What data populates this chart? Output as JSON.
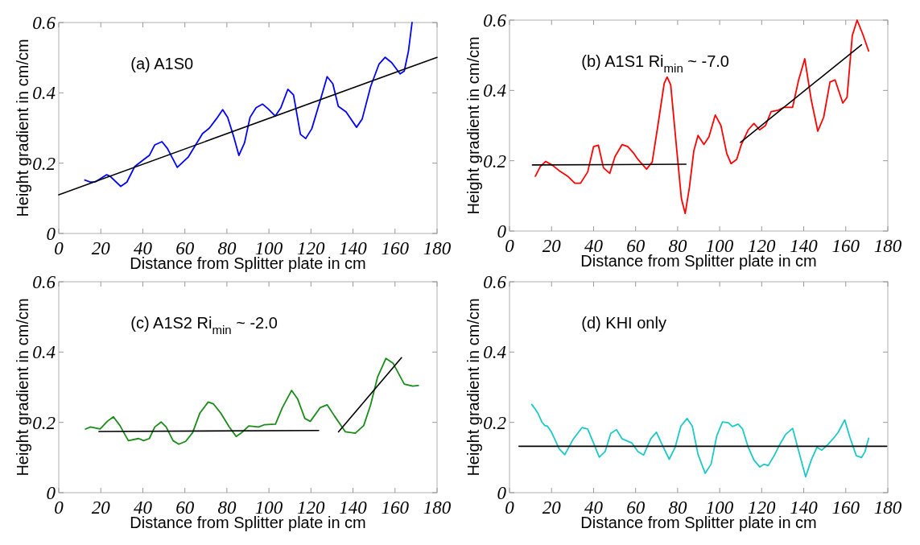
{
  "chart_data": [
    {
      "type": "line",
      "title": "(a) A1S0",
      "xlabel": "Distance from Splitter plate in cm",
      "ylabel": "Height gradient in cm/cm",
      "xlim": [
        0,
        180
      ],
      "ylim": [
        0,
        0.6
      ],
      "xticks": [
        0,
        20,
        40,
        60,
        80,
        100,
        120,
        140,
        160,
        180
      ],
      "yticks": [
        0,
        0.2,
        0.4,
        0.6
      ],
      "series": [
        {
          "color": "#0000ff",
          "x": [
            12.4,
            15.1,
            17.5,
            22.8,
            24.4,
            29.5,
            32.4,
            36.1,
            40.4,
            43.1,
            45.7,
            49.1,
            51.7,
            56.4,
            61.7,
            68.4,
            71.7,
            75,
            78,
            80.4,
            83.3,
            85.7,
            88.4,
            91,
            93.9,
            97,
            99.7,
            103,
            105.7,
            109,
            111.7,
            115,
            117.5,
            120.4,
            124.4,
            127.7,
            130.4,
            133,
            136.7,
            141.7,
            144.4,
            148.4,
            152.4,
            155.3,
            158.4,
            162.4,
            164.4,
            166.4,
            168.1
          ],
          "values": [
            0.152,
            0.146,
            0.147,
            0.167,
            0.163,
            0.134,
            0.146,
            0.19,
            0.21,
            0.222,
            0.252,
            0.261,
            0.242,
            0.188,
            0.218,
            0.284,
            0.3,
            0.326,
            0.352,
            0.33,
            0.274,
            0.222,
            0.258,
            0.33,
            0.358,
            0.368,
            0.354,
            0.334,
            0.358,
            0.41,
            0.394,
            0.282,
            0.27,
            0.298,
            0.378,
            0.446,
            0.426,
            0.362,
            0.346,
            0.302,
            0.326,
            0.418,
            0.482,
            0.501,
            0.486,
            0.454,
            0.462,
            0.519,
            0.6
          ]
        },
        {
          "type": "line",
          "color": "#000000",
          "x": [
            0,
            180
          ],
          "values": [
            0.11,
            0.501
          ]
        }
      ]
    },
    {
      "type": "line",
      "title": "(b) A1S1 Ri$_{min}$ ~ -7.0",
      "xlabel": "Distance from Splitter plate in cm",
      "ylabel": "Height gradient in cm/cm",
      "xlim": [
        0,
        180
      ],
      "ylim": [
        0,
        0.6
      ],
      "xticks": [
        0,
        20,
        40,
        60,
        80,
        100,
        120,
        140,
        160,
        180
      ],
      "yticks": [
        0,
        0.2,
        0.4,
        0.6
      ],
      "series": [
        {
          "color": "#ff0000",
          "x": [
            12.3,
            14.7,
            17.2,
            20.2,
            23.6,
            27.7,
            31.1,
            33.8,
            37.2,
            40,
            42.3,
            44.7,
            47.7,
            50.2,
            53.6,
            56.3,
            59,
            61.1,
            65.2,
            67.9,
            70.6,
            73.6,
            75,
            76.7,
            79.5,
            81.8,
            83.6,
            85.6,
            87.7,
            89.7,
            92.5,
            94.9,
            97.9,
            100.6,
            103.4,
            105.4,
            108.1,
            110.2,
            113.6,
            116.3,
            119,
            121.8,
            124.5,
            127.9,
            130.6,
            134.7,
            137.5,
            140.5,
            143.6,
            146.7,
            149.5,
            152.5,
            154.9,
            158.6,
            160.6,
            163.1,
            165.4,
            168.1,
            170.9
          ],
          "values": [
            0.156,
            0.184,
            0.198,
            0.188,
            0.172,
            0.156,
            0.136,
            0.136,
            0.168,
            0.24,
            0.244,
            0.18,
            0.164,
            0.212,
            0.246,
            0.24,
            0.222,
            0.204,
            0.176,
            0.196,
            0.3,
            0.42,
            0.438,
            0.416,
            0.236,
            0.092,
            0.05,
            0.124,
            0.228,
            0.272,
            0.246,
            0.268,
            0.33,
            0.3,
            0.22,
            0.192,
            0.204,
            0.244,
            0.288,
            0.306,
            0.288,
            0.3,
            0.34,
            0.344,
            0.352,
            0.352,
            0.428,
            0.49,
            0.372,
            0.284,
            0.324,
            0.424,
            0.43,
            0.364,
            0.38,
            0.556,
            0.6,
            0.56,
            0.512
          ]
        },
        {
          "type": "line",
          "color": "#000000",
          "x": [
            10.9,
            84
          ],
          "values": [
            0.188,
            0.19
          ]
        },
        {
          "type": "line",
          "color": "#000000",
          "x": [
            109.9,
            167.5
          ],
          "values": [
            0.252,
            0.53
          ]
        }
      ]
    },
    {
      "type": "line",
      "title": "(c) A1S2 Ri$_{min}$ ~ -2.0",
      "xlabel": "Distance from Splitter plate in cm",
      "ylabel": "Height gradient in cm/cm",
      "xlim": [
        0,
        180
      ],
      "ylim": [
        0,
        0.6
      ],
      "xticks": [
        0,
        20,
        40,
        60,
        80,
        100,
        120,
        140,
        160,
        180
      ],
      "yticks": [
        0,
        0.2,
        0.4,
        0.6
      ],
      "series": [
        {
          "color": "#1a8c1a",
          "x": [
            12.7,
            15.1,
            19.7,
            23.1,
            26,
            29.1,
            33.1,
            38,
            40.4,
            43.1,
            45.7,
            48.7,
            51.1,
            54.4,
            57.1,
            60.4,
            63.7,
            67.1,
            71.1,
            73.7,
            77.1,
            81.1,
            84.4,
            87.1,
            90.4,
            95.1,
            97.7,
            103.1,
            106.4,
            110.8,
            113.7,
            117.1,
            119.7,
            124.4,
            127.7,
            131.1,
            136.4,
            141.1,
            145.1,
            148.4,
            151.7,
            155.7,
            159.1,
            164.4,
            168.4,
            171.1
          ],
          "values": [
            0.181,
            0.187,
            0.181,
            0.203,
            0.216,
            0.191,
            0.148,
            0.154,
            0.148,
            0.154,
            0.187,
            0.201,
            0.187,
            0.148,
            0.138,
            0.146,
            0.171,
            0.226,
            0.258,
            0.252,
            0.226,
            0.187,
            0.16,
            0.171,
            0.19,
            0.187,
            0.193,
            0.195,
            0.242,
            0.291,
            0.266,
            0.211,
            0.203,
            0.242,
            0.25,
            0.219,
            0.173,
            0.169,
            0.191,
            0.25,
            0.329,
            0.382,
            0.368,
            0.309,
            0.303,
            0.305
          ]
        },
        {
          "type": "line",
          "color": "#000000",
          "x": [
            19.1,
            123.7
          ],
          "values": [
            0.174,
            0.177
          ]
        },
        {
          "type": "line",
          "color": "#000000",
          "x": [
            133.1,
            163.1
          ],
          "values": [
            0.173,
            0.384
          ]
        }
      ]
    },
    {
      "type": "line",
      "title": "(d) KHI only",
      "xlabel": "Distance from Splitter plate in cm",
      "ylabel": "Height gradient in cm/cm",
      "xlim": [
        0,
        180
      ],
      "ylim": [
        0,
        0.6
      ],
      "xticks": [
        0,
        20,
        40,
        60,
        80,
        100,
        120,
        140,
        160,
        180
      ],
      "yticks": [
        0,
        0.2,
        0.4,
        0.6
      ],
      "series": [
        {
          "color": "#1ec8c8",
          "x": [
            10.6,
            12.3,
            13.6,
            15.4,
            16.8,
            18.1,
            19.9,
            23.6,
            26.3,
            30.4,
            34.5,
            37.2,
            40,
            42.7,
            45.5,
            48.2,
            50.9,
            53.6,
            58.3,
            61.1,
            63.8,
            67.2,
            69.9,
            72.6,
            76,
            78.8,
            81.5,
            84.5,
            87,
            89.7,
            93.1,
            95.9,
            98.6,
            101.3,
            104.1,
            106.1,
            108.8,
            110.9,
            113.6,
            116.3,
            119.1,
            121.1,
            123.1,
            125.9,
            128.6,
            131.3,
            134.7,
            137.5,
            140.9,
            143.6,
            146.3,
            148.6,
            151.8,
            154.5,
            156.5,
            159.5,
            162,
            165,
            167.5,
            169.1,
            170.9
          ],
          "values": [
            0.251,
            0.237,
            0.225,
            0.201,
            0.191,
            0.189,
            0.173,
            0.125,
            0.108,
            0.153,
            0.185,
            0.181,
            0.141,
            0.101,
            0.117,
            0.169,
            0.179,
            0.153,
            0.141,
            0.117,
            0.107,
            0.153,
            0.172,
            0.137,
            0.095,
            0.129,
            0.189,
            0.211,
            0.189,
            0.109,
            0.055,
            0.081,
            0.161,
            0.201,
            0.199,
            0.188,
            0.195,
            0.181,
            0.129,
            0.093,
            0.073,
            0.081,
            0.077,
            0.105,
            0.137,
            0.165,
            0.183,
            0.121,
            0.045,
            0.093,
            0.129,
            0.121,
            0.139,
            0.157,
            0.173,
            0.207,
            0.157,
            0.105,
            0.1,
            0.116,
            0.155
          ]
        },
        {
          "type": "line",
          "color": "#000000",
          "x": [
            4.5,
            179.5
          ],
          "values": [
            0.132,
            0.132
          ]
        }
      ]
    }
  ]
}
